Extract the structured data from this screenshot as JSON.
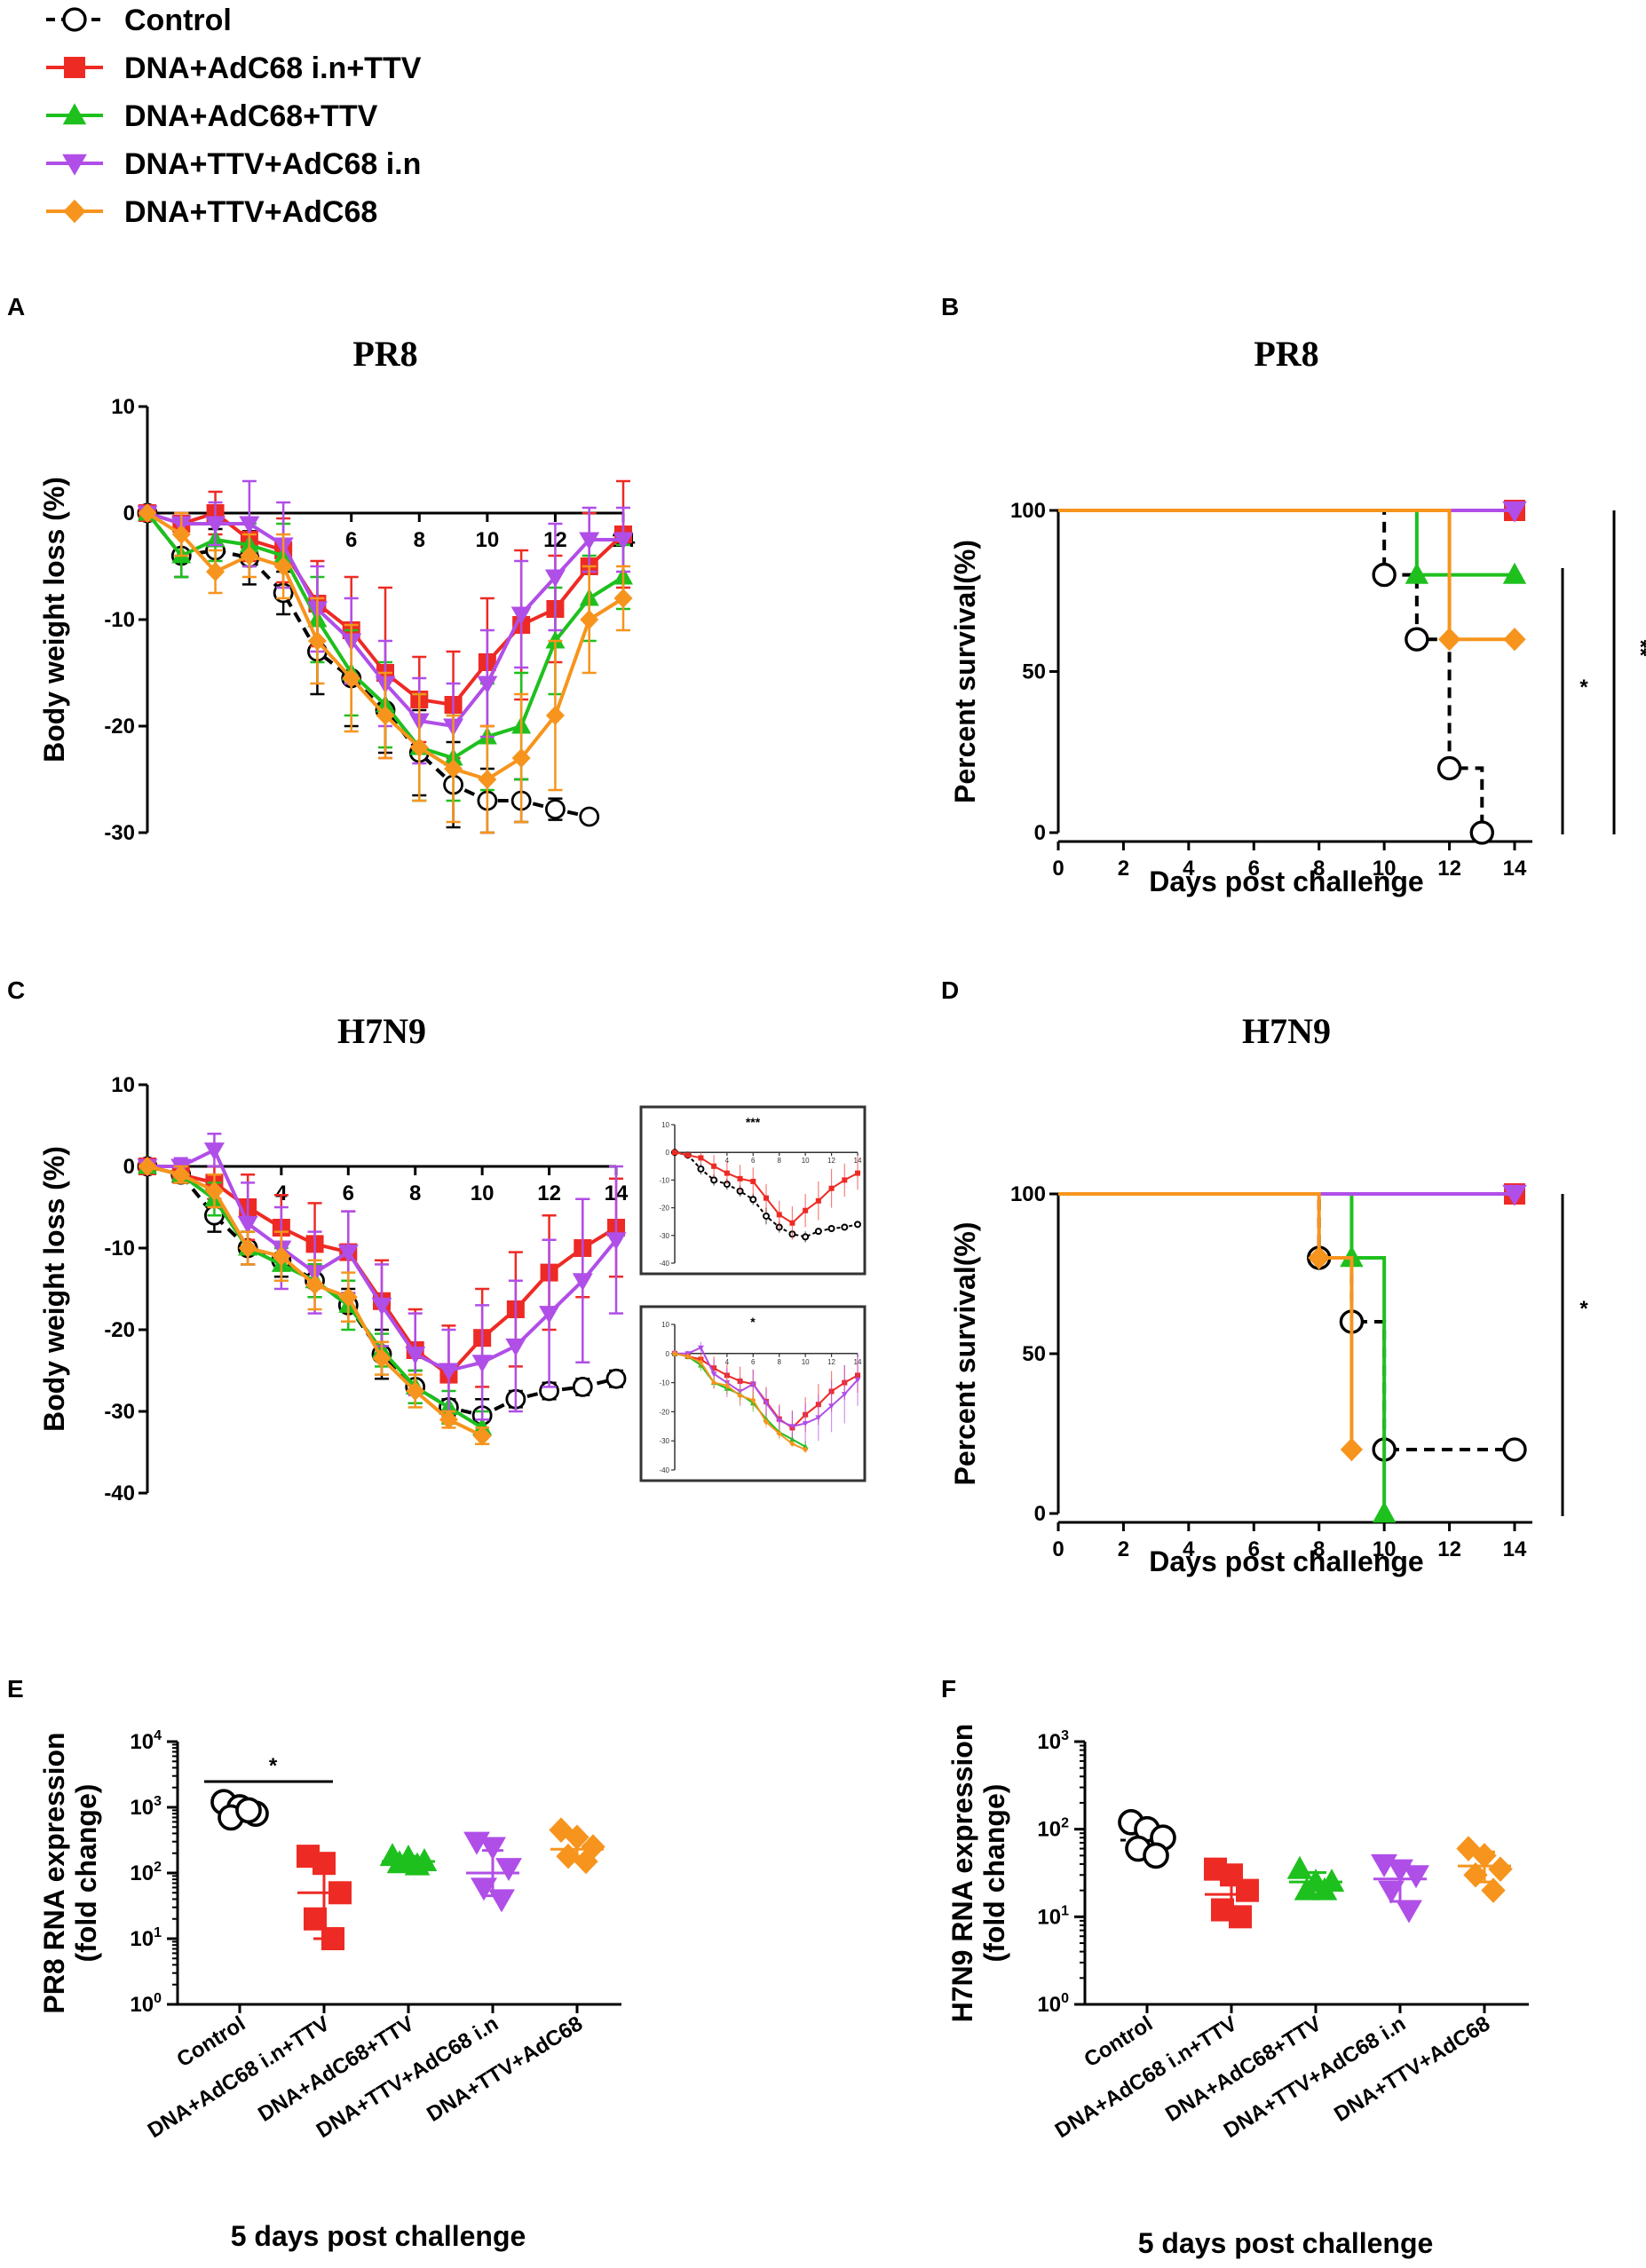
{
  "legend": {
    "items": [
      {
        "label": "Control",
        "color": "#000000",
        "marker": "circle",
        "dashed": true
      },
      {
        "label": "DNA+AdC68 i.n+TTV",
        "color": "#ee2a24",
        "marker": "square",
        "dashed": false
      },
      {
        "label": "DNA+AdC68+TTV",
        "color": "#1ec01e",
        "marker": "triangle-up",
        "dashed": false
      },
      {
        "label": "DNA+TTV+AdC68 i.n",
        "color": "#b04ee8",
        "marker": "triangle-down",
        "dashed": false
      },
      {
        "label": "DNA+TTV+AdC68",
        "color": "#f7941d",
        "marker": "diamond",
        "dashed": false
      }
    ]
  },
  "colors": {
    "control": "#000000",
    "red": "#ee2a24",
    "green": "#1ec01e",
    "purple": "#b04ee8",
    "orange": "#f7941d"
  },
  "chart_data": [
    {
      "panel": "A",
      "type": "line",
      "title": "PR8",
      "xlabel": "",
      "ylabel": "Body weight loss   (%)",
      "xlim": [
        0,
        14
      ],
      "ylim": [
        -30,
        10
      ],
      "xticks": [
        6,
        8,
        10,
        12,
        14
      ],
      "xtick_labels": [
        "6",
        "8",
        "10",
        "12",
        "14"
      ],
      "yticks": [
        10,
        0,
        -10,
        -20,
        -30
      ],
      "ytick_labels": [
        "10",
        "0",
        "-10",
        "-20",
        "-30"
      ],
      "series": [
        {
          "name": "Control",
          "x": [
            0,
            1,
            2,
            3,
            4,
            5,
            6,
            7,
            8,
            9,
            10,
            11,
            12,
            13
          ],
          "values": [
            0,
            -4,
            -3.5,
            -4.2,
            -7.5,
            -13,
            -15.5,
            -18.5,
            -22.5,
            -25.5,
            -27,
            -27,
            -27.8,
            -28.5
          ],
          "err": [
            0,
            2,
            2,
            2.5,
            2,
            4,
            4.5,
            4,
            4,
            4,
            3,
            2,
            1,
            0
          ]
        },
        {
          "name": "DNA+AdC68 i.n+TTV",
          "x": [
            0,
            1,
            2,
            3,
            4,
            5,
            6,
            7,
            8,
            9,
            10,
            11,
            12,
            13,
            14
          ],
          "values": [
            0,
            -1,
            0,
            -2.5,
            -3.5,
            -8.5,
            -11,
            -15,
            -17.5,
            -18,
            -14,
            -10.5,
            -9,
            -5,
            -2
          ],
          "err": [
            0,
            1,
            2,
            2,
            3,
            4,
            5,
            8,
            4,
            5,
            6,
            7,
            5,
            5,
            5
          ]
        },
        {
          "name": "DNA+AdC68+TTV",
          "x": [
            0,
            1,
            2,
            3,
            4,
            5,
            6,
            7,
            8,
            9,
            10,
            11,
            12,
            13,
            14
          ],
          "values": [
            0,
            -4,
            -2.5,
            -3,
            -4,
            -10,
            -15,
            -18,
            -22,
            -23,
            -21,
            -20,
            -12,
            -8,
            -6
          ],
          "err": [
            0,
            2,
            2,
            2,
            3,
            4,
            4,
            4,
            5,
            4,
            5,
            5,
            5,
            4,
            3
          ]
        },
        {
          "name": "DNA+TTV+AdC68 i.n",
          "x": [
            0,
            1,
            2,
            3,
            4,
            5,
            6,
            7,
            8,
            9,
            10,
            11,
            12,
            13,
            14
          ],
          "values": [
            0,
            -1,
            -1,
            -1,
            -3,
            -9,
            -12,
            -16,
            -19.5,
            -20,
            -16,
            -9.5,
            -6,
            -2.5,
            -2.5
          ],
          "err": [
            0,
            1,
            2,
            4,
            4,
            4,
            4,
            4,
            4,
            4,
            5,
            5,
            5,
            3,
            3
          ]
        },
        {
          "name": "DNA+TTV+AdC68",
          "x": [
            0,
            1,
            2,
            3,
            4,
            5,
            6,
            7,
            8,
            9,
            10,
            11,
            12,
            13,
            14
          ],
          "values": [
            0,
            -2,
            -5.5,
            -4,
            -5,
            -12,
            -15.5,
            -19,
            -22,
            -24,
            -25,
            -23,
            -19,
            -10,
            -8
          ],
          "err": [
            0,
            2,
            2,
            2,
            3,
            4,
            5,
            4,
            5,
            5,
            5,
            6,
            7,
            5,
            3
          ]
        }
      ]
    },
    {
      "panel": "B",
      "type": "line",
      "step": true,
      "title": "PR8",
      "xlabel": "Days post challenge",
      "ylabel": "Percent survival(%)",
      "xlim": [
        0,
        14
      ],
      "ylim": [
        0,
        100
      ],
      "xticks": [
        0,
        2,
        4,
        6,
        8,
        10,
        12,
        14
      ],
      "xtick_labels": [
        "0",
        "2",
        "4",
        "6",
        "8",
        "10",
        "12",
        "14"
      ],
      "yticks": [
        0,
        50,
        100
      ],
      "ytick_labels": [
        "0",
        "50",
        "100"
      ],
      "series": [
        {
          "name": "Control",
          "x": [
            0,
            10,
            11,
            12,
            13
          ],
          "values": [
            100,
            80,
            60,
            20,
            0
          ]
        },
        {
          "name": "DNA+AdC68 i.n+TTV",
          "x": [
            0,
            14
          ],
          "values": [
            100,
            100
          ]
        },
        {
          "name": "DNA+AdC68+TTV",
          "x": [
            0,
            11,
            14
          ],
          "values": [
            100,
            80,
            80
          ]
        },
        {
          "name": "DNA+TTV+AdC68 i.n",
          "x": [
            0,
            14
          ],
          "values": [
            100,
            100
          ]
        },
        {
          "name": "DNA+TTV+AdC68",
          "x": [
            0,
            12,
            14
          ],
          "values": [
            100,
            60,
            60
          ]
        }
      ],
      "annotations": [
        "*",
        "**"
      ]
    },
    {
      "panel": "C",
      "type": "line",
      "title": "H7N9",
      "xlabel": "",
      "ylabel": "Body weight loss   (%)",
      "xlim": [
        0,
        14
      ],
      "ylim": [
        -40,
        10
      ],
      "xticks": [
        4,
        6,
        8,
        10,
        12,
        14
      ],
      "xtick_labels": [
        "4",
        "6",
        "8",
        "10",
        "12",
        "14"
      ],
      "yticks": [
        10,
        0,
        -10,
        -20,
        -30,
        -40
      ],
      "ytick_labels": [
        "10",
        "0",
        "-10",
        "-20",
        "-30",
        "-40"
      ],
      "series": [
        {
          "name": "Control",
          "x": [
            0,
            1,
            2,
            3,
            4,
            5,
            6,
            7,
            8,
            9,
            10,
            11,
            12,
            13,
            14
          ],
          "values": [
            0,
            -1,
            -6,
            -10,
            -11.5,
            -14,
            -17,
            -23,
            -27,
            -29.5,
            -30.5,
            -28.5,
            -27.5,
            -27,
            -26
          ],
          "err": [
            0,
            1,
            2,
            2,
            2,
            2,
            2,
            3,
            2,
            1,
            2,
            1,
            1,
            1,
            1
          ]
        },
        {
          "name": "DNA+AdC68 i.n+TTV",
          "x": [
            0,
            1,
            2,
            3,
            4,
            5,
            6,
            7,
            8,
            9,
            10,
            11,
            12,
            13,
            14
          ],
          "values": [
            0,
            -1,
            -2,
            -5,
            -7.5,
            -9.5,
            -10.5,
            -16.5,
            -22.5,
            -25.5,
            -21,
            -17.5,
            -13,
            -10,
            -7.5
          ],
          "err": [
            0,
            1,
            2,
            4,
            4,
            5,
            5,
            5,
            5,
            6,
            6,
            7,
            7,
            6,
            6
          ]
        },
        {
          "name": "DNA+AdC68+TTV",
          "x": [
            0,
            1,
            2,
            3,
            4,
            5,
            6,
            7,
            8,
            9,
            10
          ],
          "values": [
            0,
            -1,
            -4,
            -10,
            -12,
            -14,
            -17,
            -22.5,
            -27,
            -29.5,
            -32
          ],
          "err": [
            0,
            1,
            2,
            2,
            2,
            2,
            3,
            2,
            2,
            2,
            2
          ]
        },
        {
          "name": "DNA+TTV+AdC68 i.n",
          "x": [
            0,
            1,
            2,
            3,
            4,
            5,
            6,
            7,
            8,
            9,
            10,
            11,
            12,
            13,
            14
          ],
          "values": [
            0,
            0,
            2,
            -7,
            -10,
            -13,
            -10.5,
            -17,
            -23,
            -25,
            -24,
            -22,
            -18,
            -14,
            -9
          ],
          "err": [
            0,
            1,
            2,
            5,
            5,
            5,
            5,
            5,
            5,
            5,
            7,
            8,
            9,
            10,
            9
          ]
        },
        {
          "name": "DNA+TTV+AdC68",
          "x": [
            0,
            1,
            2,
            3,
            4,
            5,
            6,
            7,
            8,
            9,
            10
          ],
          "values": [
            0,
            -1,
            -3,
            -10,
            -11,
            -14.5,
            -16,
            -23.5,
            -27.5,
            -31,
            -33
          ],
          "err": [
            0,
            1,
            2,
            2,
            3,
            3,
            3,
            2,
            2,
            1,
            1
          ]
        }
      ],
      "insets": [
        {
          "annotation": "***"
        },
        {
          "annotation": "*"
        }
      ]
    },
    {
      "panel": "D",
      "type": "line",
      "step": true,
      "title": "H7N9",
      "xlabel": "Days post challenge",
      "ylabel": "Percent survival(%)",
      "xlim": [
        0,
        14
      ],
      "ylim": [
        0,
        100
      ],
      "xticks": [
        0,
        2,
        4,
        6,
        8,
        10,
        12,
        14
      ],
      "xtick_labels": [
        "0",
        "2",
        "4",
        "6",
        "8",
        "10",
        "12",
        "14"
      ],
      "yticks": [
        0,
        50,
        100
      ],
      "ytick_labels": [
        "0",
        "50",
        "100"
      ],
      "series": [
        {
          "name": "Control",
          "x": [
            0,
            8,
            9,
            10,
            14
          ],
          "values": [
            100,
            80,
            60,
            20,
            20
          ]
        },
        {
          "name": "DNA+AdC68 i.n+TTV",
          "x": [
            0,
            14
          ],
          "values": [
            100,
            100
          ]
        },
        {
          "name": "DNA+AdC68+TTV",
          "x": [
            0,
            9,
            10
          ],
          "values": [
            100,
            80,
            0
          ]
        },
        {
          "name": "DNA+TTV+AdC68 i.n",
          "x": [
            0,
            14
          ],
          "values": [
            100,
            100
          ]
        },
        {
          "name": "DNA+TTV+AdC68",
          "x": [
            0,
            8,
            9
          ],
          "values": [
            100,
            80,
            20
          ]
        }
      ],
      "annotations": [
        "*"
      ]
    },
    {
      "panel": "E",
      "type": "scatter",
      "scale": "log",
      "xlabel": "5 days post challenge",
      "ylabel": "PR8 RNA expression\n(fold change)",
      "ylim": [
        1,
        10000
      ],
      "ytick_exponents": [
        "0",
        "1",
        "2",
        "3",
        "4"
      ],
      "categories": [
        "Control",
        "DNA+AdC68 i.n+TTV",
        "DNA+AdC68+TTV",
        "DNA+TTV+AdC68 i.n",
        "DNA+TTV+AdC68"
      ],
      "points": [
        [
          1200,
          1000,
          800,
          700,
          900
        ],
        [
          180,
          140,
          50,
          20,
          10
        ],
        [
          180,
          170,
          150,
          140,
          130
        ],
        [
          300,
          250,
          120,
          60,
          40
        ],
        [
          450,
          350,
          250,
          180,
          150
        ]
      ],
      "means": [
        950,
        50,
        150,
        100,
        230
      ],
      "sd_low": [
        700,
        10,
        130,
        45,
        150
      ],
      "sd_high": [
        1200,
        170,
        180,
        220,
        350
      ],
      "annotations": [
        "*"
      ]
    },
    {
      "panel": "F",
      "type": "scatter",
      "scale": "log",
      "xlabel": "5 days post challenge",
      "ylabel": "H7N9 RNA expression\n(fold change)",
      "ylim": [
        1,
        1000
      ],
      "ytick_exponents": [
        "0",
        "1",
        "2",
        "3"
      ],
      "categories": [
        "Control",
        "DNA+AdC68 i.n+TTV",
        "DNA+AdC68+TTV",
        "DNA+TTV+AdC68 i.n",
        "DNA+TTV+AdC68"
      ],
      "points": [
        [
          120,
          100,
          80,
          60,
          50
        ],
        [
          35,
          30,
          20,
          12,
          10
        ],
        [
          35,
          25,
          25,
          20,
          20
        ],
        [
          40,
          35,
          30,
          20,
          12
        ],
        [
          60,
          50,
          35,
          30,
          20
        ]
      ],
      "means": [
        75,
        18,
        25,
        27,
        38
      ],
      "sd_low": [
        55,
        10,
        20,
        15,
        25
      ],
      "sd_high": [
        95,
        32,
        32,
        40,
        55
      ]
    }
  ]
}
